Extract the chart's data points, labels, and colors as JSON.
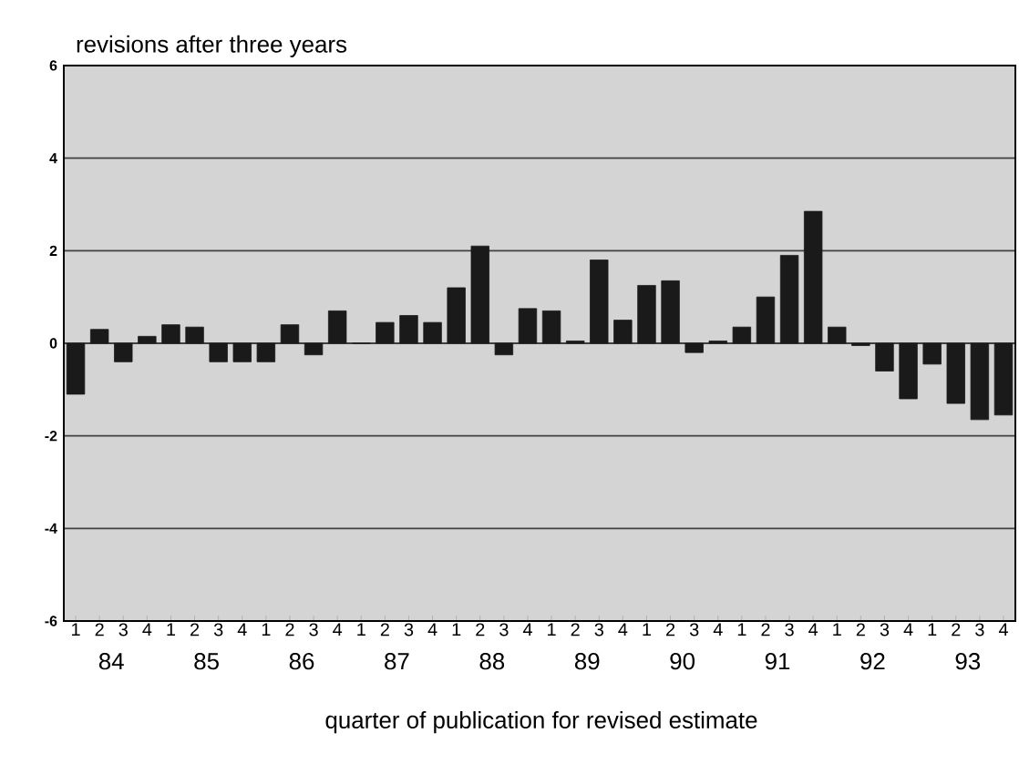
{
  "chart_data": {
    "type": "bar",
    "title": "revisions after three years",
    "xlabel": "quarter of publication for revised estimate",
    "categories": [
      "1",
      "2",
      "3",
      "4",
      "1",
      "2",
      "3",
      "4",
      "1",
      "2",
      "3",
      "4",
      "1",
      "2",
      "3",
      "4",
      "1",
      "2",
      "3",
      "4",
      "1",
      "2",
      "3",
      "4",
      "1",
      "2",
      "3",
      "4",
      "1",
      "2",
      "3",
      "4",
      "1",
      "2",
      "3",
      "4",
      "1",
      "2",
      "3",
      "4"
    ],
    "values": [
      -1.1,
      0.3,
      -0.4,
      0.15,
      0.4,
      0.35,
      -0.4,
      -0.4,
      -0.4,
      0.4,
      -0.25,
      0.7,
      0.0,
      0.45,
      0.6,
      0.45,
      1.2,
      2.1,
      -0.25,
      0.75,
      0.7,
      0.05,
      1.8,
      0.5,
      1.25,
      1.35,
      -0.2,
      0.05,
      0.35,
      1.0,
      1.9,
      2.85,
      0.35,
      -0.05,
      -0.6,
      -1.2,
      -0.45,
      -1.3,
      -1.65,
      -1.55
    ],
    "color": "#1a1a1a",
    "ylim": [
      -6,
      6
    ],
    "yticks": [
      -6,
      -4,
      -2,
      0,
      2,
      4,
      6
    ],
    "grid": "y",
    "annotations": [
      "84",
      "85",
      "86",
      "87",
      "88",
      "89",
      "90",
      "91",
      "92",
      "93"
    ]
  }
}
